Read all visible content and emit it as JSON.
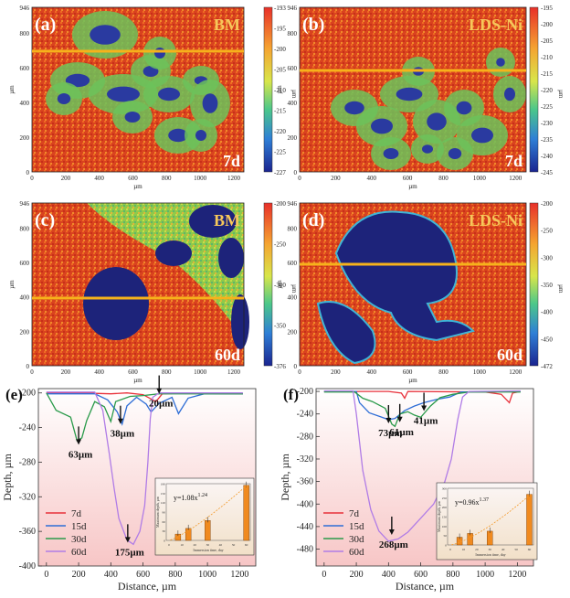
{
  "maps": [
    {
      "id": "a",
      "label": "(a)",
      "material": "BM",
      "time": "7d",
      "scale_ticks": [
        "-193",
        "-195",
        "-200",
        "-205",
        "-210",
        "-215",
        "-220",
        "-225",
        "-227"
      ],
      "unit": "µm",
      "x_ticks": [
        "0",
        "200",
        "400",
        "600",
        "800",
        "1000",
        "1200"
      ],
      "y_ticks": [
        "946",
        "800",
        "600",
        "400",
        "200",
        "0"
      ],
      "xlabel": "µm",
      "ylabel": "µm"
    },
    {
      "id": "b",
      "label": "(b)",
      "material": "LDS-Ni",
      "time": "7d",
      "scale_ticks": [
        "-195",
        "-200",
        "-205",
        "-210",
        "-215",
        "-220",
        "-225",
        "-230",
        "-235",
        "-240",
        "-245"
      ],
      "unit": "µm",
      "x_ticks": [
        "0",
        "200",
        "400",
        "600",
        "800",
        "1000",
        "1200"
      ],
      "y_ticks": [
        "946",
        "800",
        "600",
        "400",
        "200",
        "0"
      ],
      "xlabel": "µm",
      "ylabel": "µm"
    },
    {
      "id": "c",
      "label": "(c)",
      "material": "BM",
      "time": "60d",
      "scale_ticks": [
        "-200",
        "-250",
        "-300",
        "-350",
        "-376"
      ],
      "unit": "µm",
      "x_ticks": [
        "0",
        "200",
        "400",
        "600",
        "800",
        "1000",
        "1200"
      ],
      "y_ticks": [
        "946",
        "800",
        "600",
        "400",
        "200",
        "0"
      ],
      "xlabel": "µm",
      "ylabel": "µm"
    },
    {
      "id": "d",
      "label": "(d)",
      "material": "LDS-Ni",
      "time": "60d",
      "scale_ticks": [
        "-200",
        "-250",
        "-300",
        "-350",
        "-400",
        "-450",
        "-472"
      ],
      "unit": "µm",
      "x_ticks": [
        "0",
        "200",
        "400",
        "600",
        "800",
        "1000",
        "1200"
      ],
      "y_ticks": [
        "946",
        "800",
        "600",
        "400",
        "200",
        "0"
      ],
      "xlabel": "µm",
      "ylabel": "µm"
    }
  ],
  "chart_data": [
    {
      "type": "line",
      "panel": "(e)",
      "xlabel": "Distance, µm",
      "ylabel": "Depth, µm",
      "xlim": [
        -50,
        1300
      ],
      "ylim": [
        -400,
        -195
      ],
      "x_ticks": [
        0,
        200,
        400,
        600,
        800,
        1000,
        1200
      ],
      "y_ticks": [
        -200,
        -240,
        -280,
        -320,
        -360,
        -400
      ],
      "series": [
        {
          "name": "7d",
          "color": "#e8303a",
          "points": [
            [
              0,
              -200
            ],
            [
              200,
              -200
            ],
            [
              400,
              -201
            ],
            [
              500,
              -200
            ],
            [
              600,
              -202
            ],
            [
              680,
              -210
            ],
            [
              720,
              -201
            ],
            [
              900,
              -200
            ],
            [
              1100,
              -201
            ],
            [
              1220,
              -201
            ]
          ]
        },
        {
          "name": "15d",
          "color": "#2f6ed6",
          "points": [
            [
              0,
              -201
            ],
            [
              300,
              -201
            ],
            [
              380,
              -208
            ],
            [
              440,
              -222
            ],
            [
              470,
              -236
            ],
            [
              500,
              -215
            ],
            [
              560,
              -205
            ],
            [
              620,
              -213
            ],
            [
              650,
              -222
            ],
            [
              700,
              -212
            ],
            [
              780,
              -205
            ],
            [
              820,
              -224
            ],
            [
              880,
              -206
            ],
            [
              980,
              -201
            ],
            [
              1220,
              -201
            ]
          ]
        },
        {
          "name": "30d",
          "color": "#2a9a4a",
          "points": [
            [
              0,
              -200
            ],
            [
              60,
              -220
            ],
            [
              150,
              -228
            ],
            [
              190,
              -255
            ],
            [
              220,
              -252
            ],
            [
              250,
              -232
            ],
            [
              300,
              -210
            ],
            [
              360,
              -216
            ],
            [
              400,
              -233
            ],
            [
              430,
              -210
            ],
            [
              520,
              -204
            ],
            [
              600,
              -203
            ],
            [
              700,
              -201
            ],
            [
              1220,
              -201
            ]
          ]
        },
        {
          "name": "60d",
          "color": "#b07ce6",
          "points": [
            [
              0,
              -199
            ],
            [
              300,
              -199
            ],
            [
              350,
              -220
            ],
            [
              390,
              -270
            ],
            [
              420,
              -310
            ],
            [
              450,
              -345
            ],
            [
              500,
              -370
            ],
            [
              540,
              -375
            ],
            [
              580,
              -360
            ],
            [
              610,
              -330
            ],
            [
              630,
              -280
            ],
            [
              645,
              -230
            ],
            [
              660,
              -205
            ],
            [
              700,
              -200
            ],
            [
              1220,
              -200
            ]
          ]
        }
      ],
      "annotations": [
        {
          "text": "20µm",
          "x": 700,
          "y": -203
        },
        {
          "text": "38µm",
          "x": 460,
          "y": -238
        },
        {
          "text": "63µm",
          "x": 200,
          "y": -262
        },
        {
          "text": "175µm",
          "x": 505,
          "y": -375
        }
      ],
      "inset": {
        "fit": "y=1.08x",
        "fit_exponent": "1.24",
        "xlabel": "Immersion time, day",
        "ylabel": "Maximum depth, µm",
        "x_ticks": [
          "0",
          "10",
          "20",
          "30",
          "40",
          "50",
          "60"
        ],
        "y_ticks": [
          "0",
          "30",
          "60",
          "90",
          "120",
          "150",
          "180"
        ],
        "bars": [
          {
            "x": 7,
            "value": 20
          },
          {
            "x": 15,
            "value": 38
          },
          {
            "x": 30,
            "value": 63
          },
          {
            "x": 60,
            "value": 175
          }
        ]
      }
    },
    {
      "type": "line",
      "panel": "(f)",
      "xlabel": "Distance, µm",
      "ylabel": "Depth, µm",
      "xlim": [
        -50,
        1300
      ],
      "ylim": [
        -510,
        -195
      ],
      "x_ticks": [
        0,
        200,
        400,
        600,
        800,
        1000,
        1200
      ],
      "y_ticks": [
        -200,
        -240,
        -280,
        -320,
        -360,
        -400,
        -440,
        -480
      ],
      "series": [
        {
          "name": "7d",
          "color": "#e8303a",
          "points": [
            [
              0,
              -200
            ],
            [
              400,
              -200
            ],
            [
              480,
              -203
            ],
            [
              500,
              -212
            ],
            [
              520,
              -200
            ],
            [
              1000,
              -201
            ],
            [
              1100,
              -205
            ],
            [
              1150,
              -220
            ],
            [
              1170,
              -203
            ],
            [
              1220,
              -200
            ]
          ]
        },
        {
          "name": "15d",
          "color": "#2f6ed6",
          "points": [
            [
              0,
              -200
            ],
            [
              200,
              -200
            ],
            [
              220,
              -220
            ],
            [
              280,
              -238
            ],
            [
              350,
              -245
            ],
            [
              400,
              -250
            ],
            [
              440,
              -248
            ],
            [
              500,
              -234
            ],
            [
              560,
              -226
            ],
            [
              620,
              -220
            ],
            [
              700,
              -214
            ],
            [
              780,
              -210
            ],
            [
              850,
              -201
            ],
            [
              1220,
              -200
            ]
          ]
        },
        {
          "name": "30d",
          "color": "#2a9a4a",
          "points": [
            [
              0,
              -201
            ],
            [
              190,
              -201
            ],
            [
              240,
              -212
            ],
            [
              300,
              -218
            ],
            [
              380,
              -230
            ],
            [
              420,
              -258
            ],
            [
              440,
              -262
            ],
            [
              470,
              -240
            ],
            [
              520,
              -236
            ],
            [
              560,
              -242
            ],
            [
              600,
              -246
            ],
            [
              660,
              -226
            ],
            [
              720,
              -211
            ],
            [
              800,
              -205
            ],
            [
              900,
              -201
            ],
            [
              1220,
              -201
            ]
          ]
        },
        {
          "name": "60d",
          "color": "#b07ce6",
          "points": [
            [
              0,
              -199
            ],
            [
              180,
              -199
            ],
            [
              200,
              -240
            ],
            [
              240,
              -340
            ],
            [
              290,
              -410
            ],
            [
              340,
              -448
            ],
            [
              400,
              -466
            ],
            [
              460,
              -462
            ],
            [
              520,
              -450
            ],
            [
              600,
              -425
            ],
            [
              680,
              -400
            ],
            [
              750,
              -360
            ],
            [
              790,
              -320
            ],
            [
              830,
              -250
            ],
            [
              860,
              -210
            ],
            [
              900,
              -200
            ],
            [
              1220,
              -199
            ]
          ]
        }
      ],
      "annotations": [
        {
          "text": "41µm",
          "x": 620,
          "y": -238
        },
        {
          "text": "73µm",
          "x": 400,
          "y": -260
        },
        {
          "text": "61µm",
          "x": 470,
          "y": -258
        },
        {
          "text": "268µm",
          "x": 420,
          "y": -458
        }
      ],
      "inset": {
        "fit": "y=0.96x",
        "fit_exponent": "1.37",
        "xlabel": "Immersion time, day",
        "ylabel": "Maximum depth, µm",
        "x_ticks": [
          "0",
          "10",
          "20",
          "30",
          "40",
          "50",
          "60"
        ],
        "y_ticks": [
          "0",
          "50",
          "100",
          "150",
          "200",
          "250",
          "300"
        ],
        "bars": [
          {
            "x": 7,
            "value": 41
          },
          {
            "x": 15,
            "value": 61
          },
          {
            "x": 30,
            "value": 73
          },
          {
            "x": 60,
            "value": 268
          }
        ]
      }
    }
  ]
}
